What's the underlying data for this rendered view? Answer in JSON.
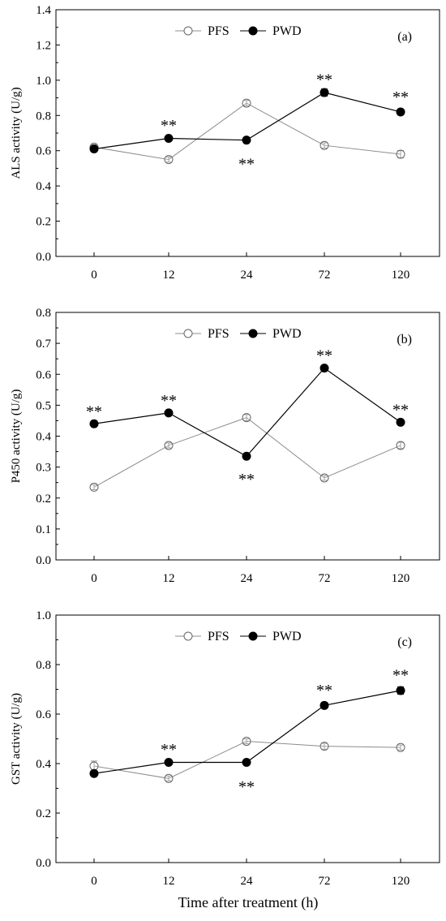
{
  "figure": {
    "x_axis_title": "Time after treatment (h)"
  },
  "chart_data": [
    {
      "type": "line",
      "panel_label": "(a)",
      "ylabel": "ALS activity (U/g)",
      "categories": [
        "0",
        "12",
        "24",
        "72",
        "120"
      ],
      "ylim": [
        0,
        1.4
      ],
      "yticks": [
        "0.0",
        "0.2",
        "0.4",
        "0.6",
        "0.8",
        "1.0",
        "1.2",
        "1.4"
      ],
      "legend_position": "top-center",
      "grid": false,
      "series": [
        {
          "name": "PFS",
          "marker": "open-circle",
          "color": "#7f7f7f",
          "values": [
            0.62,
            0.55,
            0.87,
            0.63,
            0.58
          ],
          "errors": [
            0.015,
            0.015,
            0.015,
            0.015,
            0.02
          ]
        },
        {
          "name": "PWD",
          "marker": "filled-circle",
          "color": "#000000",
          "values": [
            0.61,
            0.67,
            0.66,
            0.93,
            0.82
          ],
          "errors": [
            0.015,
            0.012,
            0.012,
            0.02,
            0.015
          ]
        }
      ],
      "annotations": [
        {
          "category": "12",
          "text": "**",
          "y": 0.77
        },
        {
          "category": "24",
          "text": "**",
          "y": 0.55
        },
        {
          "category": "72",
          "text": "**",
          "y": 1.03
        },
        {
          "category": "120",
          "text": "**",
          "y": 0.93
        }
      ]
    },
    {
      "type": "line",
      "panel_label": "(b)",
      "ylabel": "P450 activity (U/g)",
      "categories": [
        "0",
        "12",
        "24",
        "72",
        "120"
      ],
      "ylim": [
        0,
        0.8
      ],
      "yticks": [
        "0.0",
        "0.1",
        "0.2",
        "0.3",
        "0.4",
        "0.5",
        "0.6",
        "0.7",
        "0.8"
      ],
      "legend_position": "top-center",
      "grid": false,
      "series": [
        {
          "name": "PFS",
          "marker": "open-circle",
          "color": "#7f7f7f",
          "values": [
            0.235,
            0.37,
            0.46,
            0.265,
            0.37
          ],
          "errors": [
            0.008,
            0.008,
            0.01,
            0.008,
            0.01
          ]
        },
        {
          "name": "PWD",
          "marker": "filled-circle",
          "color": "#000000",
          "values": [
            0.44,
            0.475,
            0.335,
            0.62,
            0.445
          ],
          "errors": [
            0.01,
            0.008,
            0.008,
            0.008,
            0.008
          ]
        }
      ],
      "annotations": [
        {
          "category": "0",
          "text": "**",
          "y": 0.495
        },
        {
          "category": "12",
          "text": "**",
          "y": 0.53
        },
        {
          "category": "24",
          "text": "**",
          "y": 0.275
        },
        {
          "category": "72",
          "text": "**",
          "y": 0.675
        },
        {
          "category": "120",
          "text": "**",
          "y": 0.5
        }
      ]
    },
    {
      "type": "line",
      "panel_label": "(c)",
      "ylabel": "GST activity (U/g)",
      "categories": [
        "0",
        "12",
        "24",
        "72",
        "120"
      ],
      "ylim": [
        0,
        1.0
      ],
      "yticks": [
        "0.0",
        "0.2",
        "0.4",
        "0.6",
        "0.8",
        "1.0"
      ],
      "legend_position": "top-center",
      "grid": false,
      "series": [
        {
          "name": "PFS",
          "marker": "open-circle",
          "color": "#7f7f7f",
          "values": [
            0.39,
            0.34,
            0.49,
            0.47,
            0.465
          ],
          "errors": [
            0.02,
            0.01,
            0.01,
            0.012,
            0.01
          ]
        },
        {
          "name": "PWD",
          "marker": "filled-circle",
          "color": "#000000",
          "values": [
            0.36,
            0.405,
            0.405,
            0.635,
            0.695
          ],
          "errors": [
            0.01,
            0.008,
            0.008,
            0.012,
            0.015
          ]
        }
      ],
      "annotations": [
        {
          "category": "12",
          "text": "**",
          "y": 0.475
        },
        {
          "category": "24",
          "text": "**",
          "y": 0.325
        },
        {
          "category": "72",
          "text": "**",
          "y": 0.715
        },
        {
          "category": "120",
          "text": "**",
          "y": 0.775
        }
      ]
    }
  ]
}
